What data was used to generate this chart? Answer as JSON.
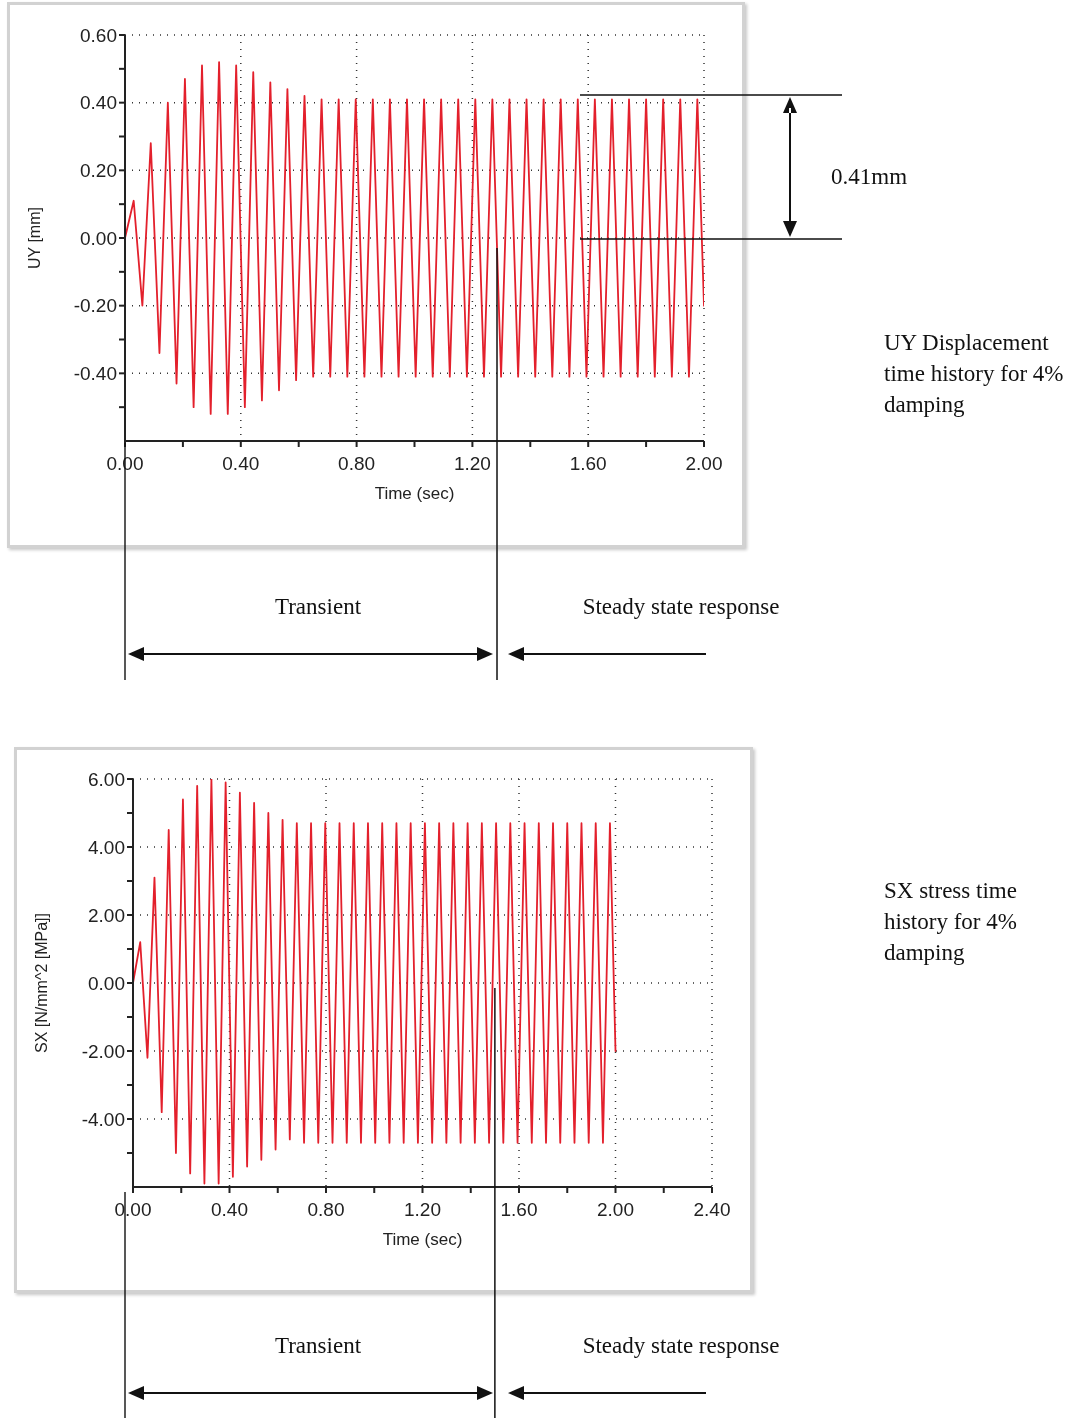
{
  "chart_data": [
    {
      "type": "line",
      "xlabel": "Time (sec)",
      "ylabel": "UY [mm]",
      "x": [
        0,
        0.03,
        0.06,
        0.089,
        0.119,
        0.148,
        0.178,
        0.207,
        0.237,
        0.266,
        0.296,
        0.325,
        0.355,
        0.384,
        0.414,
        0.443,
        0.473,
        0.502,
        0.532,
        0.561,
        0.591,
        0.62,
        0.65,
        0.679,
        0.709,
        0.738,
        0.768,
        0.797,
        0.827,
        0.856,
        0.886,
        0.915,
        0.945,
        0.974,
        1.004,
        1.033,
        1.063,
        1.092,
        1.122,
        1.151,
        1.181,
        1.21,
        1.24,
        1.269,
        1.299,
        1.328,
        1.358,
        1.387,
        1.417,
        1.446,
        1.476,
        1.505,
        1.535,
        1.564,
        1.594,
        1.623,
        1.653,
        1.682,
        1.712,
        1.741,
        1.771,
        1.8,
        1.83,
        1.859,
        1.889,
        1.918,
        1.948,
        1.977,
        2.0
      ],
      "series": [
        {
          "color": "#e3202c",
          "values": [
            0,
            0.11,
            -0.2,
            0.28,
            -0.34,
            0.4,
            -0.43,
            0.47,
            -0.5,
            0.51,
            -0.52,
            0.52,
            -0.52,
            0.51,
            -0.5,
            0.49,
            -0.48,
            0.46,
            -0.45,
            0.44,
            -0.42,
            0.42,
            -0.41,
            0.41,
            -0.41,
            0.41,
            -0.41,
            0.41,
            -0.41,
            0.41,
            -0.41,
            0.41,
            -0.41,
            0.41,
            -0.41,
            0.41,
            -0.41,
            0.41,
            -0.41,
            0.41,
            -0.41,
            0.41,
            -0.41,
            0.41,
            -0.41,
            0.41,
            -0.41,
            0.41,
            -0.41,
            0.41,
            -0.41,
            0.41,
            -0.41,
            0.41,
            -0.41,
            0.41,
            -0.41,
            0.41,
            -0.41,
            0.41,
            -0.41,
            0.41,
            -0.41,
            0.41,
            -0.41,
            0.41,
            -0.41,
            0.41,
            -0.2
          ]
        }
      ],
      "xlim": [
        0,
        2.0
      ],
      "xticks": [
        {
          "value": 0,
          "label": "0.00"
        },
        {
          "value": 0.2,
          "label": null
        },
        {
          "value": 0.4,
          "label": "0.40"
        },
        {
          "value": 0.6,
          "label": null
        },
        {
          "value": 0.8,
          "label": "0.80"
        },
        {
          "value": 1.0,
          "label": null
        },
        {
          "value": 1.2,
          "label": "1.20"
        },
        {
          "value": 1.4,
          "label": null
        },
        {
          "value": 1.6,
          "label": "1.60"
        },
        {
          "value": 1.8,
          "label": null
        },
        {
          "value": 2.0,
          "label": "2.00"
        }
      ],
      "ylim": [
        -0.6,
        0.6
      ],
      "yticks": [
        {
          "value": -0.5,
          "label": null
        },
        {
          "value": -0.4,
          "label": "-0.40"
        },
        {
          "value": -0.3,
          "label": null
        },
        {
          "value": -0.2,
          "label": "-0.20"
        },
        {
          "value": -0.1,
          "label": null
        },
        {
          "value": 0,
          "label": "0.00"
        },
        {
          "value": 0.1,
          "label": null
        },
        {
          "value": 0.2,
          "label": "0.20"
        },
        {
          "value": 0.3,
          "label": null
        },
        {
          "value": 0.4,
          "label": "0.40"
        },
        {
          "value": 0.5,
          "label": null
        },
        {
          "value": 0.6,
          "label": "0.60"
        }
      ],
      "grid": true,
      "ref_lines": [
        {
          "axis": "x",
          "value": 1.285,
          "color": "#111111"
        }
      ],
      "annotations": [
        "0.41mm",
        "UY Displacement time history for 4% damping",
        "Transient",
        "Steady state response"
      ]
    },
    {
      "type": "line",
      "xlabel": "Time (sec)",
      "ylabel": "SX [N/mm^2 [MPa]]",
      "x": [
        0,
        0.03,
        0.06,
        0.089,
        0.119,
        0.148,
        0.178,
        0.207,
        0.237,
        0.266,
        0.296,
        0.325,
        0.355,
        0.384,
        0.414,
        0.443,
        0.473,
        0.502,
        0.532,
        0.561,
        0.591,
        0.62,
        0.65,
        0.679,
        0.709,
        0.738,
        0.768,
        0.797,
        0.827,
        0.856,
        0.886,
        0.915,
        0.945,
        0.974,
        1.004,
        1.033,
        1.063,
        1.092,
        1.122,
        1.151,
        1.181,
        1.21,
        1.24,
        1.269,
        1.299,
        1.328,
        1.358,
        1.387,
        1.417,
        1.446,
        1.476,
        1.505,
        1.535,
        1.564,
        1.594,
        1.623,
        1.653,
        1.682,
        1.712,
        1.741,
        1.771,
        1.8,
        1.83,
        1.859,
        1.889,
        1.918,
        1.948,
        1.977,
        2.0
      ],
      "series": [
        {
          "color": "#e3202c",
          "values": [
            0,
            1.2,
            -2.2,
            3.1,
            -3.8,
            4.5,
            -5.0,
            5.4,
            -5.6,
            5.8,
            -5.9,
            6.0,
            -5.9,
            5.9,
            -5.7,
            5.6,
            -5.4,
            5.3,
            -5.2,
            5.0,
            -4.9,
            4.8,
            -4.6,
            4.7,
            -4.7,
            4.7,
            -4.7,
            4.7,
            -4.7,
            4.7,
            -4.7,
            4.7,
            -4.7,
            4.7,
            -4.7,
            4.7,
            -4.7,
            4.7,
            -4.7,
            4.7,
            -4.7,
            4.7,
            -4.7,
            4.7,
            -4.7,
            4.7,
            -4.7,
            4.7,
            -4.7,
            4.7,
            -4.7,
            4.7,
            -4.7,
            4.7,
            -4.7,
            4.7,
            -4.7,
            4.7,
            -4.7,
            4.7,
            -4.7,
            4.7,
            -4.7,
            4.7,
            -4.7,
            4.7,
            -4.7,
            4.7,
            -2.0
          ]
        }
      ],
      "xlim": [
        0,
        2.4
      ],
      "xticks": [
        {
          "value": 0,
          "label": "0.00"
        },
        {
          "value": 0.2,
          "label": null
        },
        {
          "value": 0.4,
          "label": "0.40"
        },
        {
          "value": 0.6,
          "label": null
        },
        {
          "value": 0.8,
          "label": "0.80"
        },
        {
          "value": 1.0,
          "label": null
        },
        {
          "value": 1.2,
          "label": "1.20"
        },
        {
          "value": 1.4,
          "label": null
        },
        {
          "value": 1.6,
          "label": "1.60"
        },
        {
          "value": 1.8,
          "label": null
        },
        {
          "value": 2.0,
          "label": "2.00"
        },
        {
          "value": 2.2,
          "label": null
        },
        {
          "value": 2.4,
          "label": "2.40"
        }
      ],
      "ylim": [
        -6,
        6
      ],
      "yticks": [
        {
          "value": -5,
          "label": null
        },
        {
          "value": -4,
          "label": "-4.00"
        },
        {
          "value": -3,
          "label": null
        },
        {
          "value": -2,
          "label": "-2.00"
        },
        {
          "value": -1,
          "label": null
        },
        {
          "value": 0,
          "label": "0.00"
        },
        {
          "value": 1,
          "label": null
        },
        {
          "value": 2,
          "label": "2.00"
        },
        {
          "value": 3,
          "label": null
        },
        {
          "value": 4,
          "label": "4.00"
        },
        {
          "value": 5,
          "label": null
        },
        {
          "value": 6,
          "label": "6.00"
        }
      ],
      "grid": true,
      "ref_lines": [
        {
          "axis": "x",
          "value": 1.5,
          "color": "#111111"
        }
      ],
      "annotations": [
        "SX stress time history for 4% damping",
        "Transient",
        "Steady state response"
      ]
    }
  ]
}
